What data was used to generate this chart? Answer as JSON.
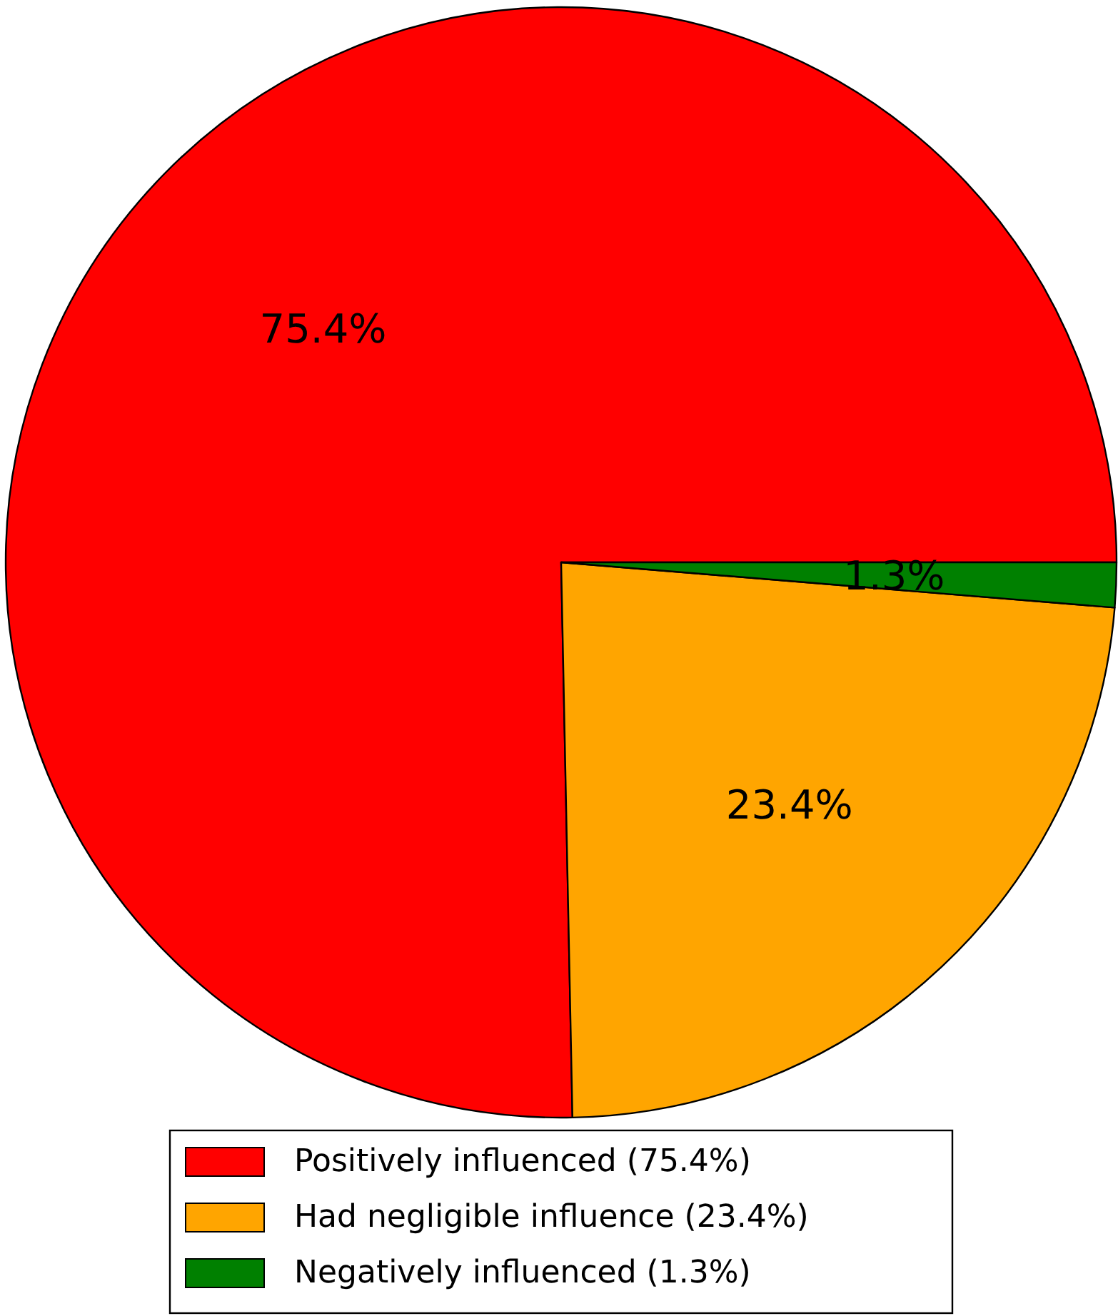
{
  "chart_data": {
    "type": "pie",
    "categories": [
      "Positively influenced (75.4%)",
      "Had negligible influence (23.4%)",
      "Negatively influenced (1.3%)"
    ],
    "values": [
      75.4,
      23.4,
      1.3
    ],
    "colors": [
      "#ff0000",
      "#ffa500",
      "#008000"
    ],
    "value_labels": [
      "75.4%",
      "23.4%",
      "1.3%"
    ],
    "legend": "bottom"
  }
}
